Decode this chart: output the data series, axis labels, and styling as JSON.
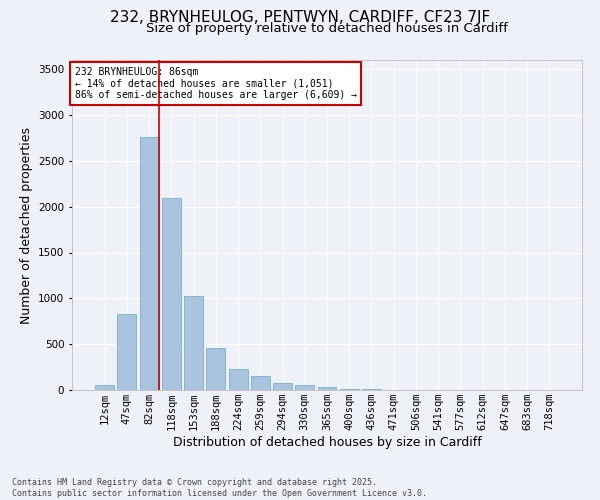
{
  "title1": "232, BRYNHEULOG, PENTWYN, CARDIFF, CF23 7JF",
  "title2": "Size of property relative to detached houses in Cardiff",
  "xlabel": "Distribution of detached houses by size in Cardiff",
  "ylabel": "Number of detached properties",
  "categories": [
    "12sqm",
    "47sqm",
    "82sqm",
    "118sqm",
    "153sqm",
    "188sqm",
    "224sqm",
    "259sqm",
    "294sqm",
    "330sqm",
    "365sqm",
    "400sqm",
    "436sqm",
    "471sqm",
    "506sqm",
    "541sqm",
    "577sqm",
    "612sqm",
    "647sqm",
    "683sqm",
    "718sqm"
  ],
  "values": [
    55,
    830,
    2760,
    2100,
    1030,
    460,
    230,
    155,
    80,
    50,
    30,
    15,
    8,
    3,
    1,
    0,
    0,
    0,
    0,
    0,
    0
  ],
  "bar_color": "#aac4e0",
  "bar_edge_color": "#7aafd0",
  "vline_index": 2,
  "vline_color": "#cc0000",
  "annotation_text": "232 BRYNHEULOG: 86sqm\n← 14% of detached houses are smaller (1,051)\n86% of semi-detached houses are larger (6,609) →",
  "annotation_box_color": "#cc0000",
  "ylim": [
    0,
    3600
  ],
  "yticks": [
    0,
    500,
    1000,
    1500,
    2000,
    2500,
    3000,
    3500
  ],
  "background_color": "#eef2f8",
  "grid_color": "#ffffff",
  "footer": "Contains HM Land Registry data © Crown copyright and database right 2025.\nContains public sector information licensed under the Open Government Licence v3.0.",
  "title1_fontsize": 11,
  "title2_fontsize": 9.5,
  "xlabel_fontsize": 9,
  "ylabel_fontsize": 9,
  "tick_fontsize": 7.5,
  "annotation_fontsize": 7,
  "footer_fontsize": 6
}
